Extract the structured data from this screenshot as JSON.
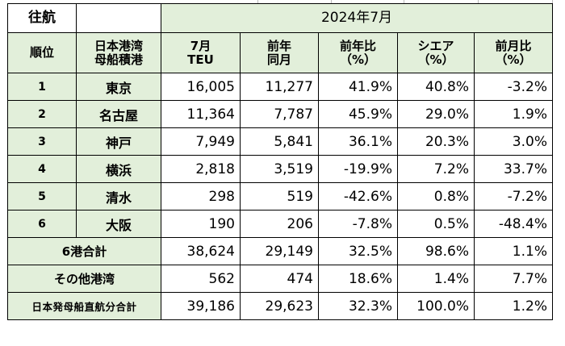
{
  "table": {
    "corner_label": "往航",
    "period_label": "2024年7月",
    "header": {
      "rank": "順位",
      "port_line1": "日本港湾",
      "port_line2": "母船積港",
      "cols": [
        {
          "line1": "7月",
          "line2": "TEU"
        },
        {
          "line1": "前年",
          "line2": "同月"
        },
        {
          "line1": "前年比",
          "line2": "（%）"
        },
        {
          "line1": "シエア",
          "line2": "（%）"
        },
        {
          "line1": "前月比",
          "line2": "（%）"
        }
      ]
    },
    "rows": [
      {
        "rank": "1",
        "port": "東京",
        "teu": "16,005",
        "prev_year": "11,277",
        "yoy": "41.9%",
        "share": "40.8%",
        "mom": "-3.2%"
      },
      {
        "rank": "2",
        "port": "名古屋",
        "teu": "11,364",
        "prev_year": "7,787",
        "yoy": "45.9%",
        "share": "29.0%",
        "mom": "1.9%"
      },
      {
        "rank": "3",
        "port": "神戸",
        "teu": "7,949",
        "prev_year": "5,841",
        "yoy": "36.1%",
        "share": "20.3%",
        "mom": "3.0%"
      },
      {
        "rank": "4",
        "port": "横浜",
        "teu": "2,818",
        "prev_year": "3,519",
        "yoy": "-19.9%",
        "share": "7.2%",
        "mom": "33.7%"
      },
      {
        "rank": "5",
        "port": "清水",
        "teu": "298",
        "prev_year": "519",
        "yoy": "-42.6%",
        "share": "0.8%",
        "mom": "-7.2%"
      },
      {
        "rank": "6",
        "port": "大阪",
        "teu": "190",
        "prev_year": "206",
        "yoy": "-7.8%",
        "share": "0.5%",
        "mom": "-48.4%"
      }
    ],
    "totals": [
      {
        "label": "6港合計",
        "teu": "38,624",
        "prev_year": "29,149",
        "yoy": "32.5%",
        "share": "98.6%",
        "mom": "1.1%"
      },
      {
        "label": "その他港湾",
        "teu": "562",
        "prev_year": "474",
        "yoy": "18.6%",
        "share": "1.4%",
        "mom": "7.7%"
      },
      {
        "label": "日本発母船直航分合計",
        "teu": "39,186",
        "prev_year": "29,623",
        "yoy": "32.3%",
        "share": "100.0%",
        "mom": "1.2%"
      }
    ]
  },
  "colors": {
    "header_fill": "#e2efda",
    "border": "#000000"
  }
}
